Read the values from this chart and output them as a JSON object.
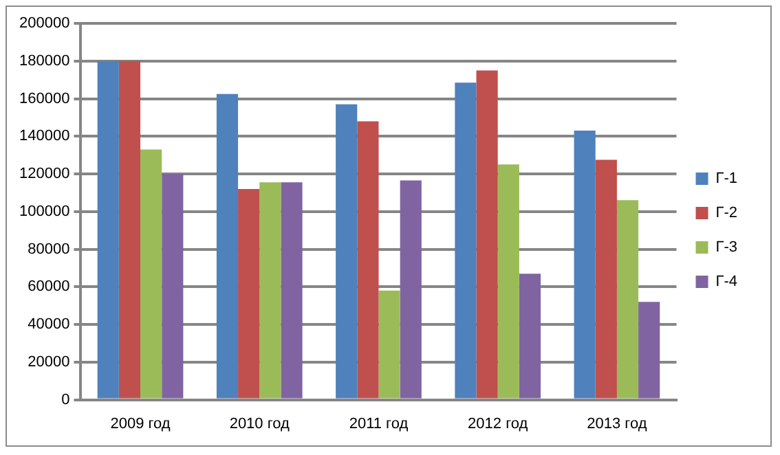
{
  "chart_data": {
    "type": "bar",
    "categories": [
      "2009 год",
      "2010 год",
      "2011 год",
      "2012 год",
      "2013 год"
    ],
    "series": [
      {
        "name": "Г-1",
        "color": "#4f81bd",
        "values": [
          180000,
          162500,
          157000,
          168500,
          143000
        ]
      },
      {
        "name": "Г-2",
        "color": "#c0504d",
        "values": [
          180000,
          112000,
          148000,
          175000,
          127500
        ]
      },
      {
        "name": "Г-3",
        "color": "#9bbb59",
        "values": [
          133000,
          115500,
          58000,
          125000,
          106000
        ]
      },
      {
        "name": "Г-4",
        "color": "#8064a2",
        "values": [
          120000,
          115500,
          116500,
          67000,
          52000
        ]
      }
    ],
    "ylim": [
      0,
      200000
    ],
    "yticks": [
      0,
      20000,
      40000,
      60000,
      80000,
      100000,
      120000,
      140000,
      160000,
      180000,
      200000
    ],
    "grid": "y",
    "legend": "right"
  }
}
